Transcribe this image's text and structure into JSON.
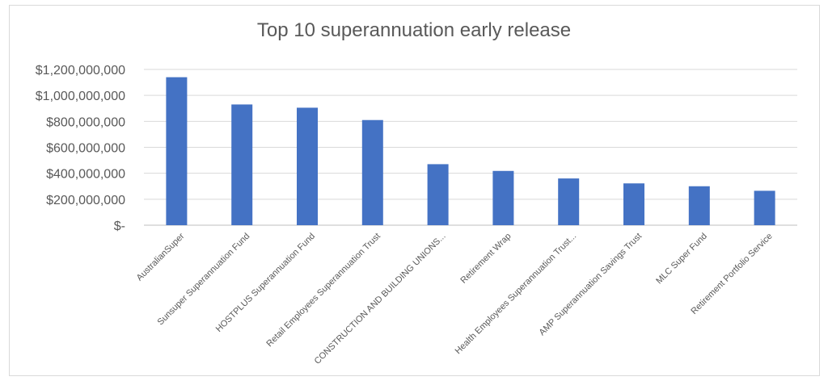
{
  "chart_data": {
    "type": "bar",
    "title": "Top 10 superannuation early release",
    "xlabel": "",
    "ylabel": "",
    "ylim": [
      0,
      1200000000
    ],
    "yticks": [
      0,
      200000000,
      400000000,
      600000000,
      800000000,
      1000000000,
      1200000000
    ],
    "ytick_labels": [
      "$-",
      "$200,000,000",
      "$400,000,000",
      "$600,000,000",
      "$800,000,000",
      "$1,000,000,000",
      "$1,200,000,000"
    ],
    "categories": [
      "AustralianSuper",
      "Sunsuper Superannuation Fund",
      "HOSTPLUS Superannuation Fund",
      "Retail Employees Superannuation Trust",
      "CONSTRUCTION AND BUILDING UNIONS...",
      "Retirement Wrap",
      "Health Employees Superannuation Trust...",
      "AMP Superannuation Savings Trust",
      "MLC Super Fund",
      "Retirement Portfolio Service"
    ],
    "values": [
      1140000000,
      930000000,
      905000000,
      810000000,
      470000000,
      418000000,
      360000000,
      322000000,
      300000000,
      265000000
    ],
    "grid": true,
    "legend": "none",
    "bar_color": "#4472c4"
  }
}
